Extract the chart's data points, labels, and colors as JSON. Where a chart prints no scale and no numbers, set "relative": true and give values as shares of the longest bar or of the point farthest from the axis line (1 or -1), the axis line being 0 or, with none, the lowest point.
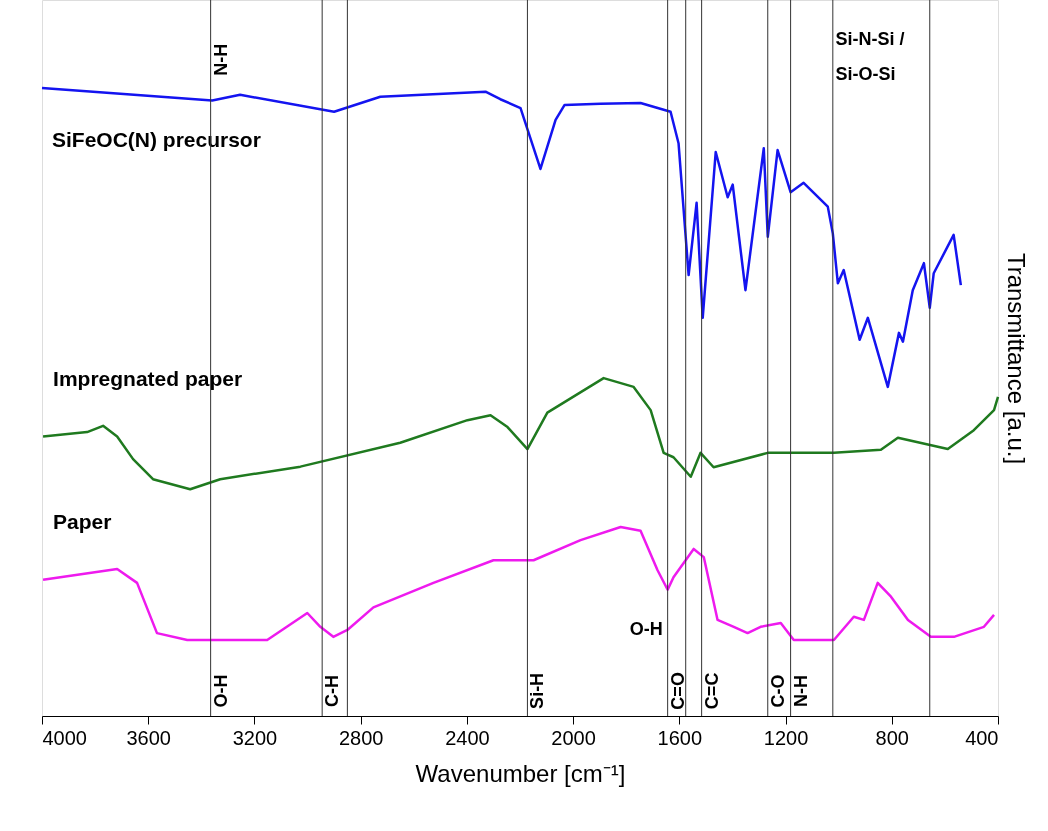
{
  "chart_data": {
    "type": "line",
    "relative": true,
    "xlabel": "Wavenumber [cm⁻¹]",
    "ylabel": "Transmittance [a.u.]",
    "xlim": [
      4000,
      400
    ],
    "xticks": [
      4000,
      3600,
      3200,
      2800,
      2400,
      2000,
      1600,
      1200,
      800,
      400
    ],
    "grid": false,
    "marker": "none",
    "line_style": "solid",
    "series": [
      {
        "name": "SiFeOC(N) precursor",
        "color": "#1414f0",
        "x": [
          4000,
          3359,
          3254,
          2900,
          2726,
          2330,
          2274,
          2198,
          2123,
          2066,
          2032,
          1897,
          1746,
          1633,
          1603,
          1565,
          1535,
          1512,
          1463,
          1418,
          1399,
          1351,
          1282,
          1267,
          1230,
          1181,
          1132,
          1041,
          1022,
          1003,
          981,
          921,
          890,
          815,
          773,
          758,
          721,
          679,
          657,
          642,
          567,
          540
        ],
        "values": [
          1.0,
          0.98,
          0.989,
          0.962,
          0.986,
          0.994,
          0.982,
          0.968,
          0.871,
          0.949,
          0.973,
          0.975,
          0.976,
          0.962,
          0.912,
          0.702,
          0.817,
          0.634,
          0.898,
          0.826,
          0.846,
          0.678,
          0.904,
          0.763,
          0.901,
          0.834,
          0.849,
          0.811,
          0.768,
          0.689,
          0.71,
          0.599,
          0.634,
          0.524,
          0.61,
          0.596,
          0.678,
          0.721,
          0.65,
          0.705,
          0.766,
          0.686
        ]
      },
      {
        "name": "Impregnated paper",
        "color": "#1f7a1f",
        "x": [
          3996,
          3830,
          3770,
          3717,
          3657,
          3582,
          3442,
          3329,
          3027,
          2651,
          2398,
          2311,
          2247,
          2172,
          2097,
          1885,
          1772,
          1708,
          1659,
          1622,
          1557,
          1520,
          1471,
          1267,
          1018,
          841,
          777,
          589,
          491,
          415,
          400
        ],
        "values": [
          0.445,
          0.452,
          0.462,
          0.445,
          0.409,
          0.377,
          0.361,
          0.377,
          0.397,
          0.435,
          0.471,
          0.479,
          0.46,
          0.425,
          0.483,
          0.538,
          0.524,
          0.487,
          0.419,
          0.412,
          0.381,
          0.419,
          0.396,
          0.419,
          0.419,
          0.424,
          0.443,
          0.425,
          0.455,
          0.487,
          0.508
        ]
      },
      {
        "name": "Paper",
        "color": "#ee1aee",
        "x": [
          3996,
          3717,
          3642,
          3567,
          3453,
          3152,
          3001,
          2952,
          2903,
          2850,
          2752,
          2526,
          2300,
          2149,
          1972,
          1821,
          1746,
          1682,
          1644,
          1622,
          1546,
          1508,
          1456,
          1395,
          1343,
          1294,
          1218,
          1169,
          1018,
          943,
          905,
          853,
          803,
          739,
          653,
          566,
          453,
          415
        ],
        "values": [
          0.217,
          0.234,
          0.212,
          0.132,
          0.121,
          0.121,
          0.164,
          0.142,
          0.126,
          0.137,
          0.173,
          0.212,
          0.248,
          0.248,
          0.28,
          0.301,
          0.295,
          0.232,
          0.201,
          0.221,
          0.266,
          0.253,
          0.153,
          0.142,
          0.132,
          0.142,
          0.148,
          0.121,
          0.121,
          0.158,
          0.153,
          0.212,
          0.19,
          0.153,
          0.126,
          0.126,
          0.142,
          0.161
        ]
      }
    ],
    "ref_lines": [
      {
        "axis": "x",
        "value": 3365,
        "color": "#333333"
      },
      {
        "axis": "x",
        "value": 2945,
        "color": "#333333"
      },
      {
        "axis": "x",
        "value": 2850,
        "color": "#333333"
      },
      {
        "axis": "x",
        "value": 2172,
        "color": "#333333"
      },
      {
        "axis": "x",
        "value": 1644,
        "color": "#333333"
      },
      {
        "axis": "x",
        "value": 1576,
        "color": "#333333"
      },
      {
        "axis": "x",
        "value": 1516,
        "color": "#333333"
      },
      {
        "axis": "x",
        "value": 1267,
        "color": "#333333"
      },
      {
        "axis": "x",
        "value": 1181,
        "color": "#333333"
      },
      {
        "axis": "x",
        "value": 1022,
        "color": "#333333"
      },
      {
        "axis": "x",
        "value": 657,
        "color": "#333333"
      }
    ],
    "annotations": [
      {
        "text": "N-H",
        "x": 3365,
        "y": 1.045
      },
      {
        "text": "O-H",
        "x": 3365,
        "y": 0.04
      },
      {
        "text": "C-H",
        "x": 2945,
        "y": 0.04
      },
      {
        "text": "Si-H",
        "x": 2172,
        "y": 0.04
      },
      {
        "text": "O-H",
        "x": 1644,
        "y": 0.137
      },
      {
        "text": "C=O",
        "x": 1644,
        "y": 0.04
      },
      {
        "text": "C=C",
        "x": 1516,
        "y": 0.04
      },
      {
        "text": "C-O",
        "x": 1267,
        "y": 0.04
      },
      {
        "text": "N-H",
        "x": 1181,
        "y": 0.04
      },
      "Si-N-Si /",
      "Si-O-Si"
    ]
  }
}
